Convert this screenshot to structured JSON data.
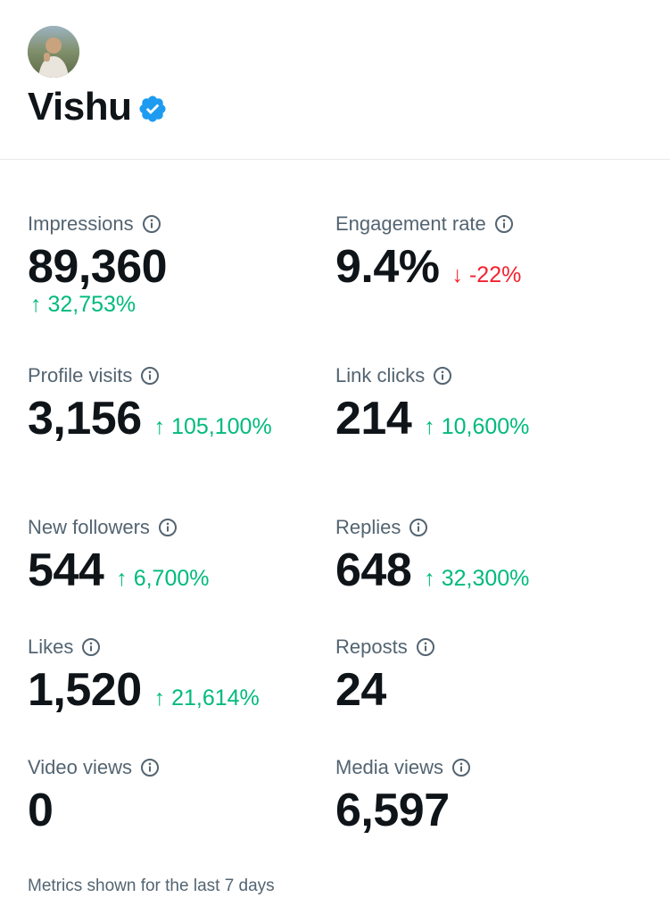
{
  "profile": {
    "name": "Vishu",
    "verified_color": "#1d9bf0"
  },
  "metrics": [
    {
      "label": "Impressions",
      "value": "89,360",
      "change": "↑ 32,753%",
      "direction": "up"
    },
    {
      "label": "Engagement rate",
      "value": "9.4%",
      "change": "↓ -22%",
      "direction": "down"
    },
    {
      "label": "Profile visits",
      "value": "3,156",
      "change": "↑ 105,100%",
      "direction": "up"
    },
    {
      "label": "Link clicks",
      "value": "214",
      "change": "↑ 10,600%",
      "direction": "up"
    },
    {
      "label": "New followers",
      "value": "544",
      "change": "↑ 6,700%",
      "direction": "up"
    },
    {
      "label": "Replies",
      "value": "648",
      "change": "↑ 32,300%",
      "direction": "up"
    },
    {
      "label": "Likes",
      "value": "1,520",
      "change": "↑ 21,614%",
      "direction": "up"
    },
    {
      "label": "Reposts",
      "value": "24",
      "change": "",
      "direction": "none"
    },
    {
      "label": "Video views",
      "value": "0",
      "change": "",
      "direction": "none"
    },
    {
      "label": "Media views",
      "value": "6,597",
      "change": "",
      "direction": "none"
    }
  ],
  "colors": {
    "up": "#00ba7c",
    "down": "#f4212e",
    "label": "#536471",
    "value": "#0f1419"
  },
  "footer": {
    "note": "Metrics shown for the last 7 days"
  }
}
